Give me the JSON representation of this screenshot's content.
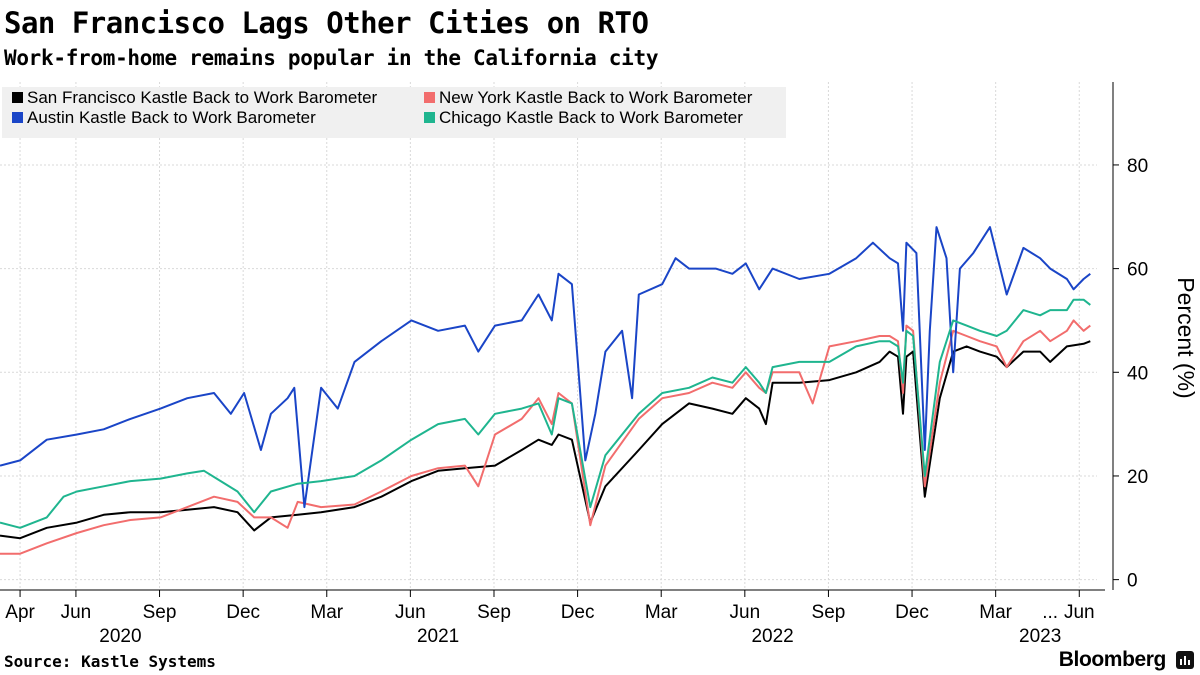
{
  "header": {
    "title": "San Francisco Lags Other Cities on RTO",
    "subtitle": "Work-from-home remains popular in the California city"
  },
  "footer": {
    "source": "Source: Kastle Systems",
    "brand": "Bloomberg",
    "brand_icon": "bloomberg-terminal-icon"
  },
  "colors": {
    "grid": "#d9d9d9",
    "axis": "#000000",
    "legend_bg": "#f0f0f0"
  },
  "chart_data": {
    "type": "line",
    "title": "San Francisco Lags Other Cities on RTO",
    "ylabel": "Percent (%)",
    "xlabel": "",
    "ylim": [
      -2,
      96
    ],
    "yticks": [
      0,
      20,
      40,
      60,
      80
    ],
    "ytick_labels": [
      "0",
      "20",
      "40",
      "60",
      "80"
    ],
    "xlim": [
      2020.19,
      2023.47
    ],
    "month_ticks": [
      {
        "label": "Apr",
        "x": 2020.25
      },
      {
        "label": "Jun",
        "x": 2020.417
      },
      {
        "label": "Sep",
        "x": 2020.667
      },
      {
        "label": "Dec",
        "x": 2020.917
      },
      {
        "label": "Mar",
        "x": 2021.167
      },
      {
        "label": "Jun",
        "x": 2021.417
      },
      {
        "label": "Sep",
        "x": 2021.667
      },
      {
        "label": "Dec",
        "x": 2021.917
      },
      {
        "label": "Mar",
        "x": 2022.167
      },
      {
        "label": "Jun",
        "x": 2022.417
      },
      {
        "label": "Sep",
        "x": 2022.667
      },
      {
        "label": "Dec",
        "x": 2022.917
      },
      {
        "label": "Mar",
        "x": 2023.167
      },
      {
        "label": "...",
        "x": 2023.33
      },
      {
        "label": "Jun",
        "x": 2023.417
      }
    ],
    "year_labels": [
      {
        "label": "2020",
        "x": 2020.55
      },
      {
        "label": "2021",
        "x": 2021.5
      },
      {
        "label": "2022",
        "x": 2022.5
      },
      {
        "label": "2023",
        "x": 2023.3
      }
    ],
    "legend_position": "top-left",
    "series": [
      {
        "name": "San Francisco Kastle Back to Work Barometer",
        "color": "#000000",
        "points": [
          [
            2020.19,
            8.5
          ],
          [
            2020.25,
            8
          ],
          [
            2020.33,
            10
          ],
          [
            2020.42,
            11
          ],
          [
            2020.5,
            12.5
          ],
          [
            2020.58,
            13
          ],
          [
            2020.67,
            13
          ],
          [
            2020.75,
            13.5
          ],
          [
            2020.83,
            14
          ],
          [
            2020.9,
            13
          ],
          [
            2020.95,
            9.5
          ],
          [
            2021.0,
            12
          ],
          [
            2021.08,
            12.5
          ],
          [
            2021.15,
            13
          ],
          [
            2021.25,
            14
          ],
          [
            2021.33,
            16
          ],
          [
            2021.42,
            19
          ],
          [
            2021.5,
            21
          ],
          [
            2021.58,
            21.5
          ],
          [
            2021.67,
            22
          ],
          [
            2021.75,
            25
          ],
          [
            2021.8,
            27
          ],
          [
            2021.84,
            26
          ],
          [
            2021.86,
            28
          ],
          [
            2021.9,
            27
          ],
          [
            2021.955,
            11
          ],
          [
            2022.0,
            18
          ],
          [
            2022.1,
            25
          ],
          [
            2022.17,
            30
          ],
          [
            2022.25,
            34
          ],
          [
            2022.32,
            33
          ],
          [
            2022.38,
            32
          ],
          [
            2022.42,
            35
          ],
          [
            2022.46,
            33
          ],
          [
            2022.48,
            30
          ],
          [
            2022.5,
            38
          ],
          [
            2022.58,
            38
          ],
          [
            2022.67,
            38.5
          ],
          [
            2022.75,
            40
          ],
          [
            2022.82,
            42
          ],
          [
            2022.85,
            44
          ],
          [
            2022.875,
            43
          ],
          [
            2022.89,
            32
          ],
          [
            2022.9,
            43
          ],
          [
            2022.92,
            44
          ],
          [
            2022.955,
            16
          ],
          [
            2023.0,
            35
          ],
          [
            2023.04,
            44
          ],
          [
            2023.08,
            45
          ],
          [
            2023.12,
            44
          ],
          [
            2023.17,
            43
          ],
          [
            2023.2,
            41
          ],
          [
            2023.25,
            44
          ],
          [
            2023.3,
            44
          ],
          [
            2023.33,
            42
          ],
          [
            2023.38,
            45
          ],
          [
            2023.43,
            45.5
          ],
          [
            2023.45,
            46
          ]
        ]
      },
      {
        "name": "New York Kastle Back to Work Barometer",
        "color": "#f26d6d",
        "points": [
          [
            2020.19,
            5
          ],
          [
            2020.25,
            5
          ],
          [
            2020.33,
            7
          ],
          [
            2020.42,
            9
          ],
          [
            2020.5,
            10.5
          ],
          [
            2020.58,
            11.5
          ],
          [
            2020.67,
            12
          ],
          [
            2020.75,
            14
          ],
          [
            2020.83,
            16
          ],
          [
            2020.9,
            15
          ],
          [
            2020.95,
            12
          ],
          [
            2021.0,
            12
          ],
          [
            2021.05,
            10
          ],
          [
            2021.08,
            15
          ],
          [
            2021.15,
            14
          ],
          [
            2021.25,
            14.5
          ],
          [
            2021.33,
            17
          ],
          [
            2021.42,
            20
          ],
          [
            2021.5,
            21.5
          ],
          [
            2021.58,
            22
          ],
          [
            2021.62,
            18
          ],
          [
            2021.67,
            28
          ],
          [
            2021.75,
            31
          ],
          [
            2021.8,
            35
          ],
          [
            2021.84,
            30
          ],
          [
            2021.86,
            36
          ],
          [
            2021.9,
            34
          ],
          [
            2021.955,
            10.5
          ],
          [
            2022.0,
            22
          ],
          [
            2022.1,
            31
          ],
          [
            2022.17,
            35
          ],
          [
            2022.25,
            36
          ],
          [
            2022.32,
            38
          ],
          [
            2022.38,
            37
          ],
          [
            2022.42,
            40
          ],
          [
            2022.46,
            37
          ],
          [
            2022.48,
            36
          ],
          [
            2022.5,
            40
          ],
          [
            2022.58,
            40
          ],
          [
            2022.62,
            34
          ],
          [
            2022.67,
            45
          ],
          [
            2022.75,
            46
          ],
          [
            2022.82,
            47
          ],
          [
            2022.85,
            47
          ],
          [
            2022.875,
            46
          ],
          [
            2022.89,
            36
          ],
          [
            2022.9,
            49
          ],
          [
            2022.92,
            48
          ],
          [
            2022.955,
            18
          ],
          [
            2023.0,
            38
          ],
          [
            2023.04,
            48
          ],
          [
            2023.08,
            47
          ],
          [
            2023.12,
            46
          ],
          [
            2023.17,
            45
          ],
          [
            2023.2,
            41
          ],
          [
            2023.25,
            46
          ],
          [
            2023.3,
            48
          ],
          [
            2023.33,
            46
          ],
          [
            2023.38,
            48
          ],
          [
            2023.4,
            50
          ],
          [
            2023.43,
            48
          ],
          [
            2023.45,
            49
          ]
        ]
      },
      {
        "name": "Austin Kastle Back to Work Barometer",
        "color": "#1a45c7",
        "points": [
          [
            2020.19,
            22
          ],
          [
            2020.25,
            23
          ],
          [
            2020.33,
            27
          ],
          [
            2020.42,
            28
          ],
          [
            2020.5,
            29
          ],
          [
            2020.58,
            31
          ],
          [
            2020.67,
            33
          ],
          [
            2020.75,
            35
          ],
          [
            2020.83,
            36
          ],
          [
            2020.88,
            32
          ],
          [
            2020.92,
            36
          ],
          [
            2020.97,
            25
          ],
          [
            2021.0,
            32
          ],
          [
            2021.05,
            35
          ],
          [
            2021.07,
            37
          ],
          [
            2021.1,
            14
          ],
          [
            2021.15,
            37
          ],
          [
            2021.2,
            33
          ],
          [
            2021.25,
            42
          ],
          [
            2021.33,
            46
          ],
          [
            2021.42,
            50
          ],
          [
            2021.5,
            48
          ],
          [
            2021.58,
            49
          ],
          [
            2021.62,
            44
          ],
          [
            2021.67,
            49
          ],
          [
            2021.75,
            50
          ],
          [
            2021.8,
            55
          ],
          [
            2021.84,
            50
          ],
          [
            2021.86,
            59
          ],
          [
            2021.9,
            57
          ],
          [
            2021.94,
            23
          ],
          [
            2021.97,
            32
          ],
          [
            2022.0,
            44
          ],
          [
            2022.05,
            48
          ],
          [
            2022.08,
            35
          ],
          [
            2022.1,
            55
          ],
          [
            2022.17,
            57
          ],
          [
            2022.21,
            62
          ],
          [
            2022.25,
            60
          ],
          [
            2022.33,
            60
          ],
          [
            2022.38,
            59
          ],
          [
            2022.42,
            61
          ],
          [
            2022.46,
            56
          ],
          [
            2022.5,
            60
          ],
          [
            2022.58,
            58
          ],
          [
            2022.67,
            59
          ],
          [
            2022.75,
            62
          ],
          [
            2022.8,
            65
          ],
          [
            2022.85,
            62
          ],
          [
            2022.875,
            61
          ],
          [
            2022.89,
            48
          ],
          [
            2022.9,
            65
          ],
          [
            2022.93,
            63
          ],
          [
            2022.955,
            25
          ],
          [
            2022.97,
            48
          ],
          [
            2022.99,
            68
          ],
          [
            2023.02,
            62
          ],
          [
            2023.04,
            40
          ],
          [
            2023.06,
            60
          ],
          [
            2023.1,
            63
          ],
          [
            2023.15,
            68
          ],
          [
            2023.2,
            55
          ],
          [
            2023.25,
            64
          ],
          [
            2023.3,
            62
          ],
          [
            2023.33,
            60
          ],
          [
            2023.38,
            58
          ],
          [
            2023.4,
            56
          ],
          [
            2023.43,
            58
          ],
          [
            2023.45,
            59
          ]
        ]
      },
      {
        "name": "Chicago Kastle Back to Work Barometer",
        "color": "#1fb58f",
        "points": [
          [
            2020.19,
            11
          ],
          [
            2020.25,
            10
          ],
          [
            2020.33,
            12
          ],
          [
            2020.38,
            16
          ],
          [
            2020.42,
            17
          ],
          [
            2020.5,
            18
          ],
          [
            2020.58,
            19
          ],
          [
            2020.67,
            19.5
          ],
          [
            2020.75,
            20.5
          ],
          [
            2020.8,
            21
          ],
          [
            2020.85,
            19
          ],
          [
            2020.9,
            17
          ],
          [
            2020.95,
            13
          ],
          [
            2021.0,
            17
          ],
          [
            2021.08,
            18.5
          ],
          [
            2021.15,
            19
          ],
          [
            2021.25,
            20
          ],
          [
            2021.33,
            23
          ],
          [
            2021.42,
            27
          ],
          [
            2021.5,
            30
          ],
          [
            2021.58,
            31
          ],
          [
            2021.62,
            28
          ],
          [
            2021.67,
            32
          ],
          [
            2021.75,
            33
          ],
          [
            2021.8,
            34
          ],
          [
            2021.84,
            28
          ],
          [
            2021.86,
            35
          ],
          [
            2021.9,
            34
          ],
          [
            2021.955,
            14
          ],
          [
            2022.0,
            24
          ],
          [
            2022.1,
            32
          ],
          [
            2022.17,
            36
          ],
          [
            2022.25,
            37
          ],
          [
            2022.32,
            39
          ],
          [
            2022.38,
            38
          ],
          [
            2022.42,
            41
          ],
          [
            2022.46,
            38
          ],
          [
            2022.48,
            36
          ],
          [
            2022.5,
            41
          ],
          [
            2022.58,
            42
          ],
          [
            2022.67,
            42
          ],
          [
            2022.75,
            45
          ],
          [
            2022.82,
            46
          ],
          [
            2022.85,
            46
          ],
          [
            2022.875,
            45
          ],
          [
            2022.89,
            38
          ],
          [
            2022.9,
            48
          ],
          [
            2022.92,
            47
          ],
          [
            2022.955,
            20
          ],
          [
            2023.0,
            42
          ],
          [
            2023.04,
            50
          ],
          [
            2023.08,
            49
          ],
          [
            2023.12,
            48
          ],
          [
            2023.17,
            47
          ],
          [
            2023.2,
            48
          ],
          [
            2023.25,
            52
          ],
          [
            2023.3,
            51
          ],
          [
            2023.33,
            52
          ],
          [
            2023.38,
            52
          ],
          [
            2023.4,
            54
          ],
          [
            2023.43,
            54
          ],
          [
            2023.45,
            53
          ]
        ]
      }
    ]
  }
}
